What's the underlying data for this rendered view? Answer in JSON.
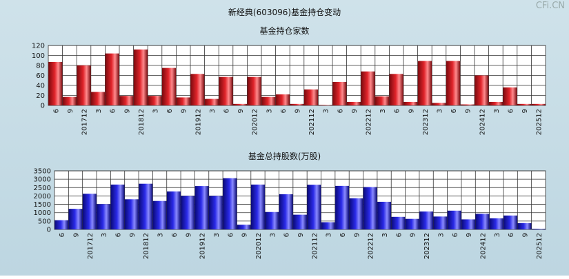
{
  "page": {
    "title": "新经典(603096)基金持仓变动",
    "watermark": "CFi.CN"
  },
  "chart_data": [
    {
      "type": "bar",
      "title": "基金持仓家数",
      "categories": [
        "6",
        "9",
        "201712",
        "3",
        "6",
        "9",
        "201812",
        "3",
        "6",
        "9",
        "201912",
        "3",
        "6",
        "9",
        "202012",
        "3",
        "6",
        "9",
        "202112",
        "3",
        "6",
        "9",
        "202212",
        "3",
        "6",
        "9",
        "202312",
        "3",
        "6",
        "9",
        "202412",
        "3",
        "6",
        "9",
        "202512"
      ],
      "values": [
        87,
        17,
        80,
        27,
        104,
        19,
        112,
        19,
        75,
        16,
        63,
        13,
        57,
        3,
        57,
        17,
        22,
        3,
        32,
        1,
        47,
        7,
        68,
        18,
        63,
        7,
        89,
        5,
        89,
        2,
        60,
        7,
        36,
        3,
        3
      ],
      "ylim": [
        0,
        120
      ],
      "yticks": [
        0,
        20,
        40,
        60,
        80,
        100,
        120
      ],
      "colors": {
        "bar": "#e0242a",
        "bar_dark": "#7a0a0e",
        "bar_light": "#ff8a8d"
      }
    },
    {
      "type": "bar",
      "title": "基金总持股数(万股)",
      "categories": [
        "6",
        "9",
        "201712",
        "3",
        "6",
        "9",
        "201812",
        "3",
        "6",
        "9",
        "201912",
        "3",
        "6",
        "9",
        "202012",
        "3",
        "6",
        "9",
        "202112",
        "3",
        "6",
        "9",
        "202212",
        "3",
        "6",
        "9",
        "202312",
        "3",
        "6",
        "9",
        "202412",
        "3",
        "6",
        "9",
        "202512"
      ],
      "values": [
        550,
        1230,
        2130,
        1510,
        2680,
        1800,
        2730,
        1700,
        2270,
        2000,
        2590,
        2000,
        3060,
        280,
        2680,
        1040,
        2100,
        880,
        2670,
        430,
        2600,
        1860,
        2530,
        1650,
        750,
        630,
        1070,
        770,
        1120,
        600,
        930,
        660,
        830,
        380,
        40
      ],
      "ylim": [
        0,
        3500
      ],
      "yticks": [
        0,
        500,
        1000,
        1500,
        2000,
        2500,
        3000,
        3500
      ],
      "colors": {
        "bar": "#2a2ae8",
        "bar_dark": "#0a0a78",
        "bar_light": "#8a8aff"
      }
    }
  ]
}
